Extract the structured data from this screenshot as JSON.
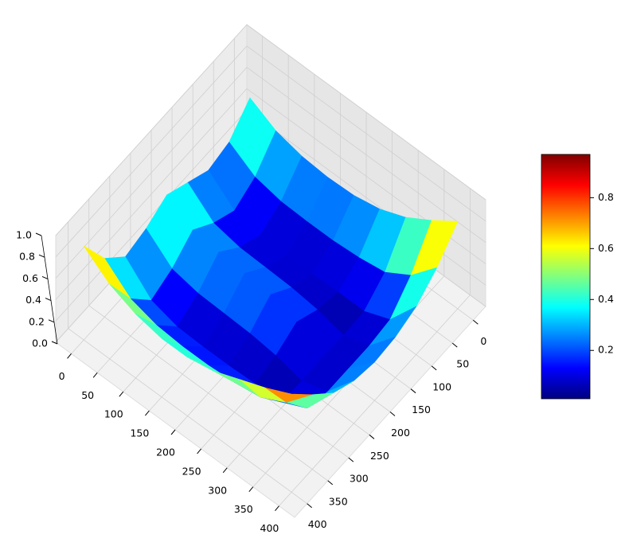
{
  "chart_data": {
    "type": "surface",
    "colormap": "jet",
    "x": [
      0,
      50,
      100,
      150,
      200,
      250,
      300,
      350,
      400
    ],
    "y": [
      0,
      50,
      100,
      150,
      200,
      250,
      300,
      350,
      400
    ],
    "z": [
      [
        0.55,
        0.35,
        0.3,
        0.4,
        0.5,
        0.4,
        0.35,
        0.55,
        0.88
      ],
      [
        0.42,
        0.2,
        0.1,
        0.2,
        0.35,
        0.2,
        0.12,
        0.35,
        0.7
      ],
      [
        0.36,
        0.15,
        0.05,
        0.15,
        0.32,
        0.15,
        0.05,
        0.28,
        0.6
      ],
      [
        0.34,
        0.14,
        0.04,
        0.14,
        0.3,
        0.14,
        0.04,
        0.26,
        0.55
      ],
      [
        0.35,
        0.14,
        0.04,
        0.13,
        0.28,
        0.13,
        0.04,
        0.26,
        0.55
      ],
      [
        0.4,
        0.16,
        0.05,
        0.1,
        0.2,
        0.1,
        0.05,
        0.28,
        0.6
      ],
      [
        0.5,
        0.2,
        0.05,
        0.04,
        0.05,
        0.04,
        0.06,
        0.32,
        0.7
      ],
      [
        0.65,
        0.35,
        0.15,
        0.12,
        0.12,
        0.12,
        0.18,
        0.45,
        0.8
      ],
      [
        0.82,
        0.6,
        0.45,
        0.38,
        0.36,
        0.4,
        0.5,
        0.7,
        0.92
      ]
    ],
    "xlim": [
      -30,
      430
    ],
    "ylim": [
      -30,
      430
    ],
    "zlim": [
      0,
      1
    ],
    "xticks": [
      0,
      50,
      100,
      150,
      200,
      250,
      300,
      350,
      400
    ],
    "yticks": [
      0,
      50,
      100,
      150,
      200,
      250,
      300,
      350,
      400
    ],
    "zticks": [
      {
        "value": 0,
        "label": "0.0"
      },
      0.2,
      0.4,
      0.6,
      0.8,
      {
        "value": 1,
        "label": "1.0"
      }
    ],
    "clim": [
      0.01,
      0.97
    ],
    "cticks": [
      0.2,
      0.4,
      0.6,
      0.8
    ],
    "grid": true
  }
}
